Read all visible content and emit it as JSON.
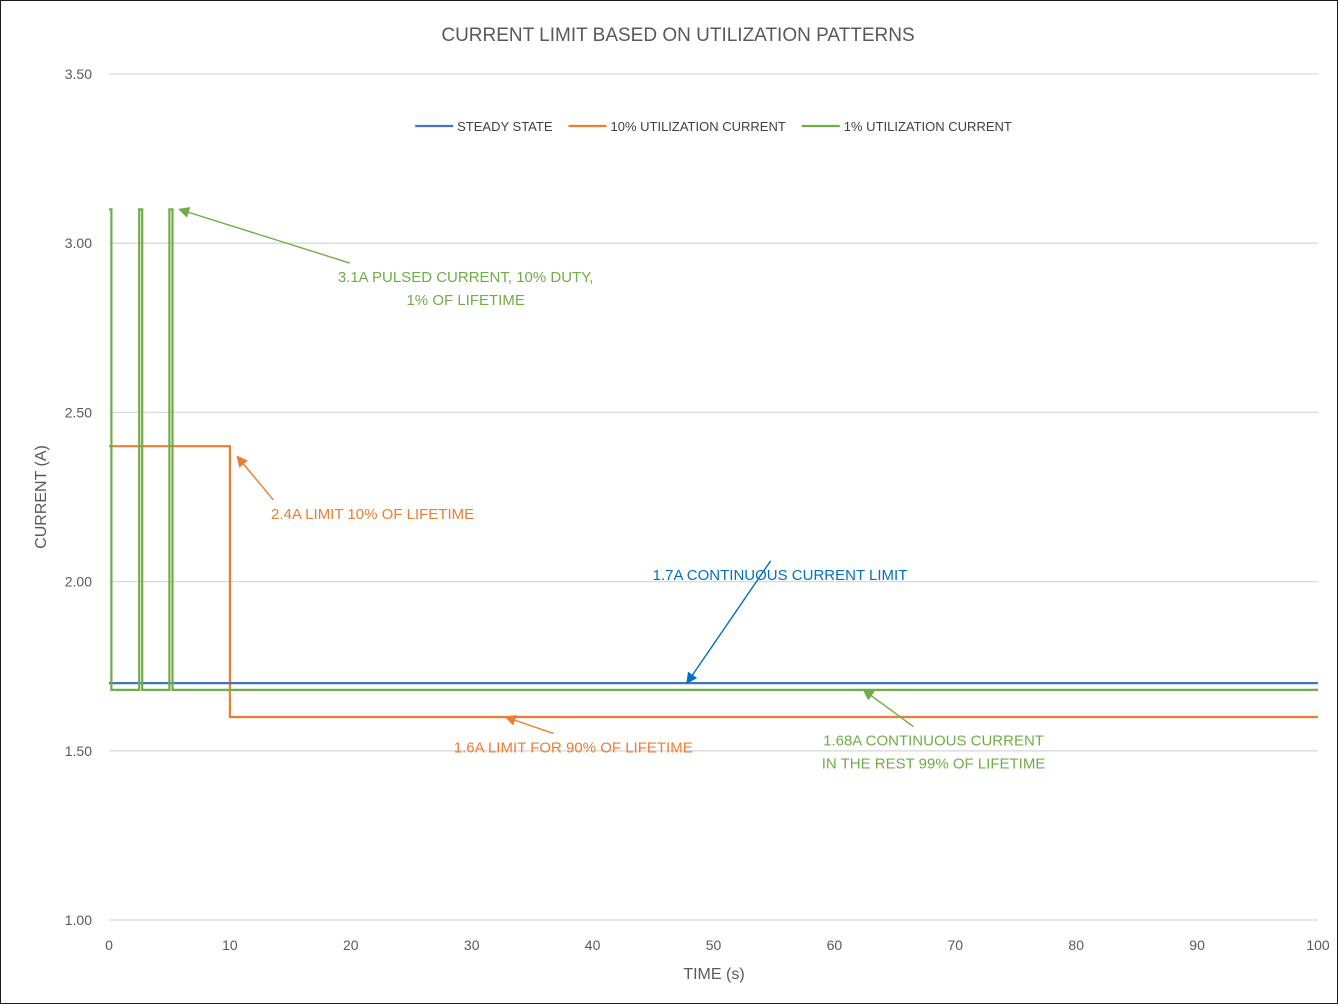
{
  "chart_data": {
    "type": "line",
    "title": "CURRENT LIMIT BASED ON UTILIZATION PATTERNS",
    "xlabel": "TIME (s)",
    "ylabel": "CURRENT (A)",
    "xlim": [
      0,
      100
    ],
    "ylim": [
      1.0,
      3.5
    ],
    "x_ticks": [
      0,
      10,
      20,
      30,
      40,
      50,
      60,
      70,
      80,
      90,
      100
    ],
    "y_ticks": [
      "1.00",
      "1.50",
      "2.00",
      "2.50",
      "3.00",
      "3.50"
    ],
    "grid": "horizontal",
    "legend_position": "top",
    "series": [
      {
        "name": "STEADY STATE",
        "color": "#4472C4",
        "x": [
          0,
          100
        ],
        "y": [
          1.7,
          1.7
        ]
      },
      {
        "name": "10% UTILIZATION CURRENT",
        "color": "#ED7D31",
        "x": [
          0,
          10,
          10,
          100
        ],
        "y": [
          2.4,
          2.4,
          1.6,
          1.6
        ]
      },
      {
        "name": "1% UTILIZATION CURRENT",
        "color": "#70AD47",
        "x": [
          0,
          0.2,
          0.2,
          2.5,
          2.5,
          2.75,
          2.75,
          5.0,
          5.0,
          5.25,
          5.25,
          100
        ],
        "y": [
          3.1,
          3.1,
          1.68,
          1.68,
          3.1,
          3.1,
          1.68,
          1.68,
          3.1,
          3.1,
          1.68,
          1.68
        ]
      }
    ],
    "annotations": [
      {
        "lines": [
          "3.1A PULSED CURRENT, 10% DUTY,",
          "1% OF LIFETIME"
        ],
        "color": "#70AD47",
        "text_x": 29.5,
        "text_y": 2.9,
        "arrow_to": [
          5.8,
          3.1
        ]
      },
      {
        "lines": [
          "2.4A LIMIT 10% OF LIFETIME"
        ],
        "color": "#ED7D31",
        "text_x": 21.8,
        "text_y": 2.2,
        "arrow_to": [
          10.6,
          2.37
        ]
      },
      {
        "lines": [
          "1.7A CONTINUOUS CURRENT LIMIT"
        ],
        "color": "#0070C0",
        "text_x": 55.5,
        "text_y": 2.02,
        "arrow_to": [
          47.8,
          1.7
        ]
      },
      {
        "lines": [
          "1.6A LIMIT FOR 90% OF LIFETIME"
        ],
        "color": "#ED7D31",
        "text_x": 38.4,
        "text_y": 1.51,
        "arrow_to": [
          32.8,
          1.6
        ]
      },
      {
        "lines": [
          "1.68A CONTINUOUS CURRENT",
          "IN THE REST 99% OF LIFETIME"
        ],
        "color": "#70AD47",
        "text_x": 68.2,
        "text_y": 1.53,
        "arrow_to": [
          62.4,
          1.68
        ]
      }
    ]
  }
}
